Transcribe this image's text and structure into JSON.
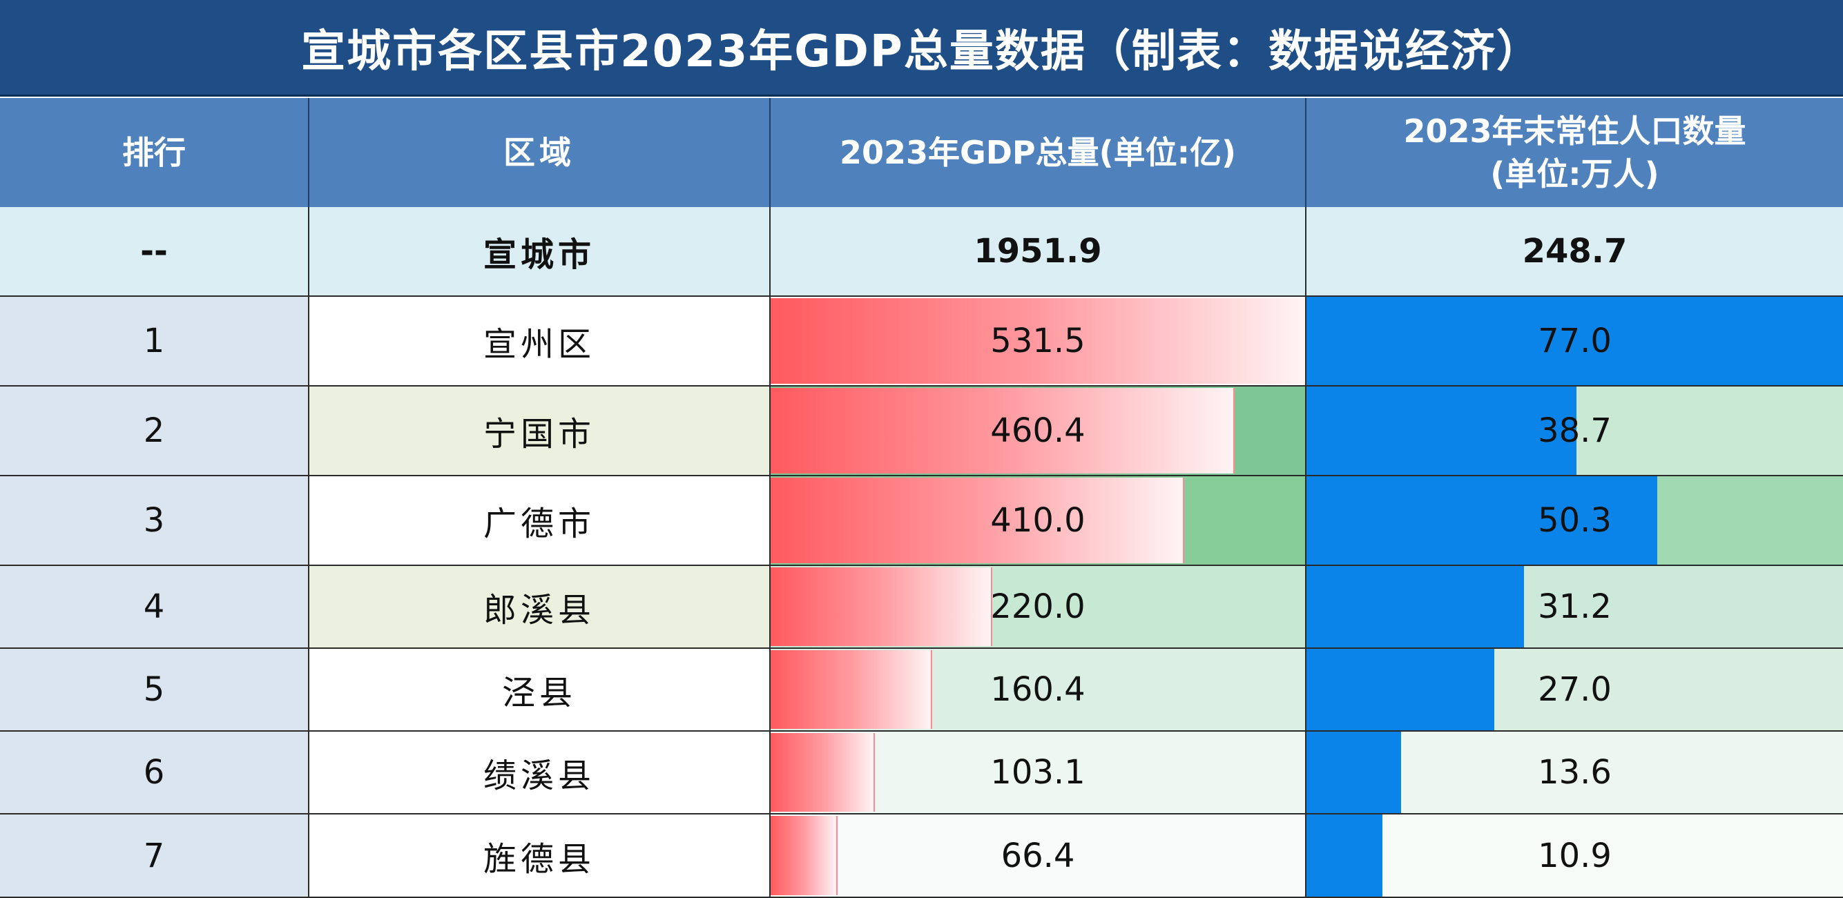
{
  "title": "宣城市各区县市2023年GDP总量数据（制表：数据说经济）",
  "headers": {
    "rank": "排行",
    "region": "区域",
    "gdp": "2023年GDP总量(单位:亿)",
    "pop_line1": "2023年末常住人口数量",
    "pop_line2": "(单位:万人)"
  },
  "total": {
    "rank": "--",
    "region": "宣城市",
    "gdp": "1951.9",
    "pop": "248.7"
  },
  "chart_data": {
    "type": "table",
    "title": "宣城市各区县市2023年GDP总量数据（制表：数据说经济）",
    "columns": [
      "排行",
      "区域",
      "2023年GDP总量(单位:亿)",
      "2023年末常住人口数量(单位:万人)"
    ],
    "gdp_max": 531.5,
    "pop_max": 77.0,
    "rows": [
      {
        "rank": "1",
        "region": "宣州区",
        "gdp": 531.5,
        "gdp_label": "531.5",
        "pop": 77.0,
        "pop_label": "77.0",
        "name_bg": "#ffffff",
        "gdp_bg": "#ffffff",
        "pop_bg": "#ffffff"
      },
      {
        "rank": "2",
        "region": "宁国市",
        "gdp": 460.4,
        "gdp_label": "460.4",
        "pop": 38.7,
        "pop_label": "38.7",
        "name_bg": "#ebf1de",
        "gdp_bg": "#7cc794",
        "pop_bg": "#c9e9d4"
      },
      {
        "rank": "3",
        "region": "广德市",
        "gdp": 410.0,
        "gdp_label": "410.0",
        "pop": 50.3,
        "pop_label": "50.3",
        "name_bg": "#ffffff",
        "gdp_bg": "#86cc99",
        "pop_bg": "#9fd8b1"
      },
      {
        "rank": "4",
        "region": "郎溪县",
        "gdp": 220.0,
        "gdp_label": "220.0",
        "pop": 31.2,
        "pop_label": "31.2",
        "name_bg": "#ebf1de",
        "gdp_bg": "#c7e8d3",
        "pop_bg": "#cde9d9"
      },
      {
        "rank": "5",
        "region": "泾县",
        "gdp": 160.4,
        "gdp_label": "160.4",
        "pop": 27.0,
        "pop_label": "27.0",
        "name_bg": "#ffffff",
        "gdp_bg": "#dcefe4",
        "pop_bg": "#daede1"
      },
      {
        "rank": "6",
        "region": "绩溪县",
        "gdp": 103.1,
        "gdp_label": "103.1",
        "pop": 13.6,
        "pop_label": "13.6",
        "name_bg": "#ffffff",
        "gdp_bg": "#eef7f2",
        "pop_bg": "#eef6f1"
      },
      {
        "rank": "7",
        "region": "旌德县",
        "gdp": 66.4,
        "gdp_label": "66.4",
        "pop": 10.9,
        "pop_label": "10.9",
        "name_bg": "#ffffff",
        "gdp_bg": "#f8fbf9",
        "pop_bg": "#f7fbf8"
      }
    ]
  }
}
